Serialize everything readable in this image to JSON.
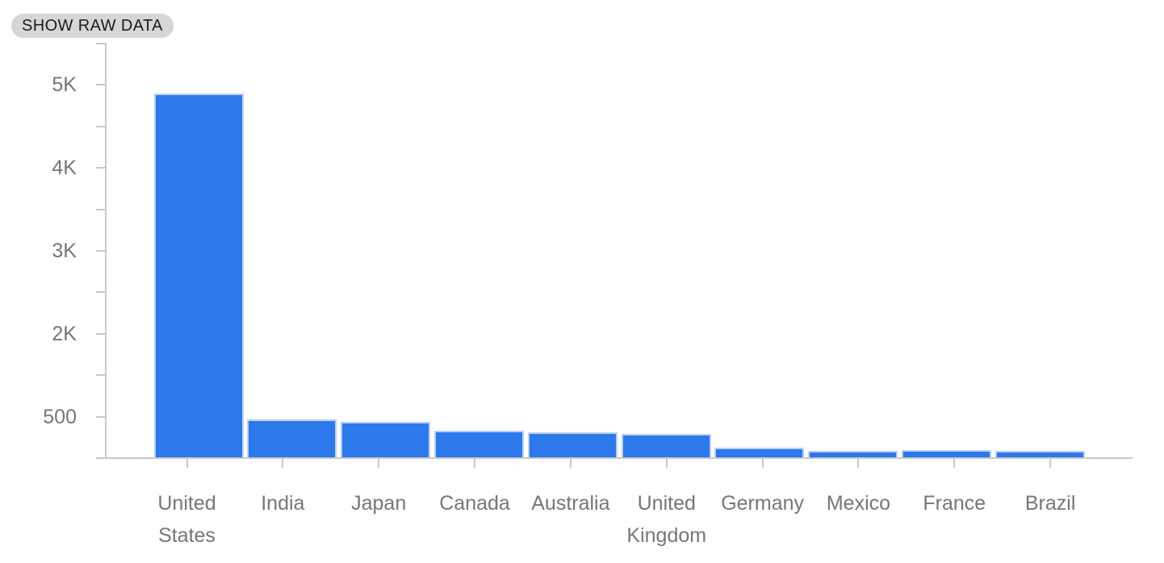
{
  "button": {
    "label": "SHOW RAW DATA"
  },
  "chart_data": {
    "type": "bar",
    "title": "",
    "categories": [
      "United States",
      "India",
      "Japan",
      "Canada",
      "Australia",
      "United Kingdom",
      "Germany",
      "Mexico",
      "France",
      "Brazil"
    ],
    "values": [
      4900,
      465,
      435,
      335,
      310,
      290,
      125,
      85,
      95,
      85
    ],
    "values_estimated_from_axis": true,
    "xlabel": "",
    "ylabel": "",
    "ylim": [
      0,
      5500
    ],
    "y_ticks": [
      {
        "value": 5000,
        "label": "5K"
      },
      {
        "value": 4000,
        "label": "4K"
      },
      {
        "value": 3000,
        "label": "3K"
      },
      {
        "value": 2000,
        "label": "2K"
      },
      {
        "value": 500,
        "label": "500"
      }
    ],
    "minor_unlabeled_ticks_between_major": true,
    "grid": false,
    "legend": false
  },
  "colors": {
    "bar_fill": "#2d78eb",
    "bar_border": "#b9d0f6",
    "axis": "#c9c9c9",
    "axis_label": "#76767a",
    "button_bg": "#d6d6d6",
    "button_text": "#1b1b1d",
    "background": "#ffffff"
  }
}
